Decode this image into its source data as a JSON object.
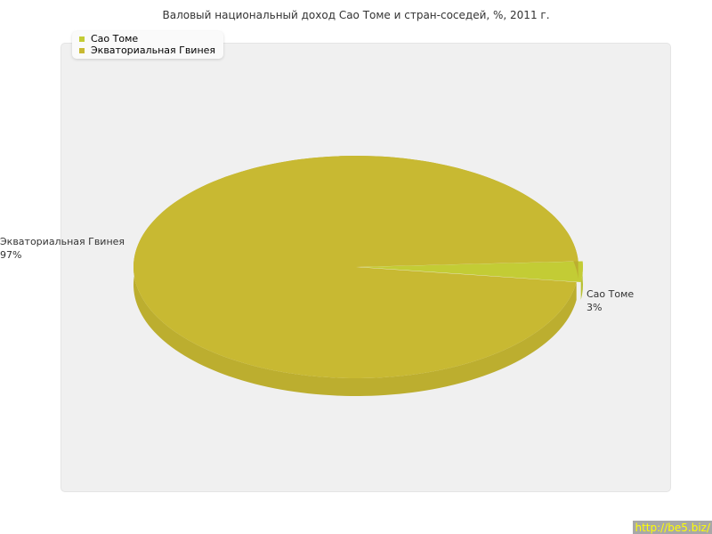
{
  "chart_data": {
    "type": "pie",
    "title": "Валовый национальный доход Сао Томе и стран-соседей, %, 2011 г.",
    "three_d": true,
    "legend_placement": "top-left",
    "slices": [
      {
        "name": "Сао Томе",
        "value": 3,
        "label": "3%",
        "color": "#c3cc35",
        "exploded": true
      },
      {
        "name": "Экваториальная Гвинея",
        "value": 97,
        "label": "97%",
        "color": "#c8b932"
      }
    ]
  },
  "watermark": "http://be5.biz/"
}
